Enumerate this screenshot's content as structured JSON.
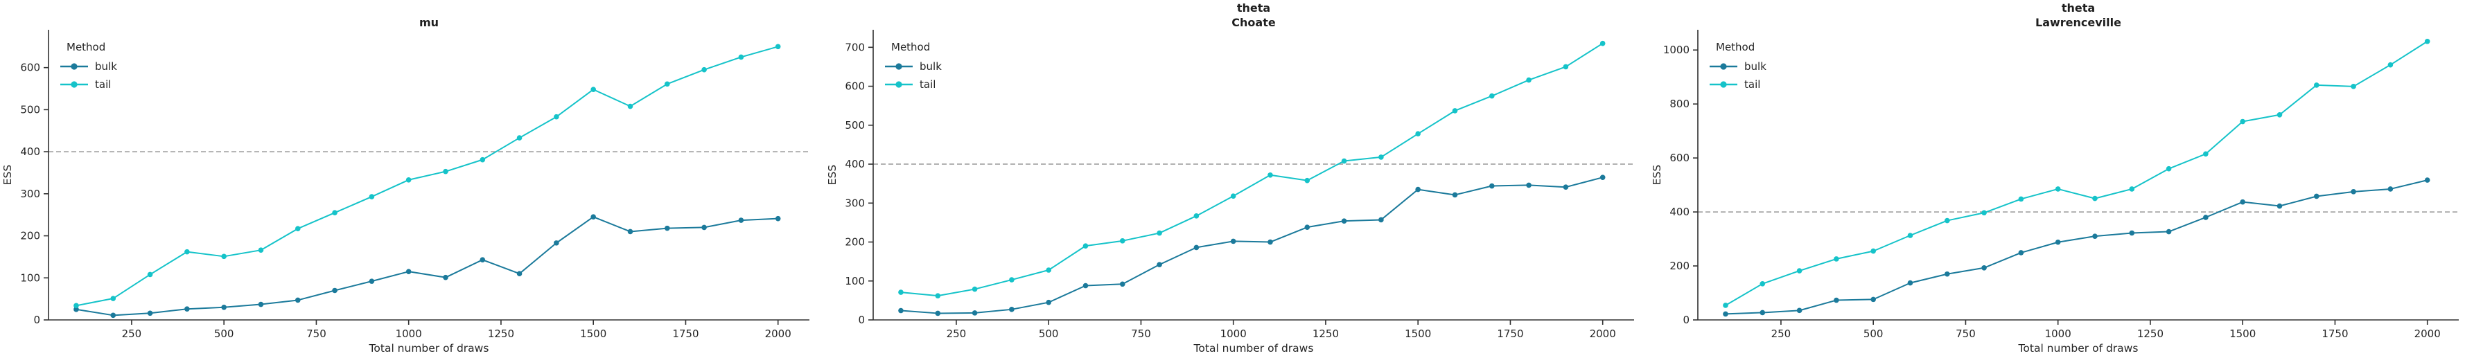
{
  "figure": {
    "xlabel": "Total number of draws",
    "ylabel": "ESS",
    "legend_title": "Method",
    "reference_line_y": 400,
    "colors": {
      "bulk": "#1b7a9b",
      "tail": "#15c3c9",
      "reference_line": "#a6a6a6",
      "axis": "#303030",
      "tick_label": "#262626",
      "title": "#1f1f1f",
      "background": "#ffffff"
    },
    "xticks": [
      250,
      500,
      750,
      1000,
      1250,
      1500,
      1750,
      2000
    ],
    "xlim": [
      25,
      2085
    ]
  },
  "chart_data": [
    {
      "type": "line",
      "title": "mu",
      "title_lines": [
        "mu"
      ],
      "xlabel": "Total number of draws",
      "ylabel": "ESS",
      "legend_position": "upper-left",
      "grid": false,
      "reference_line_y": 400,
      "x": [
        100,
        200,
        300,
        400,
        500,
        600,
        700,
        800,
        900,
        1000,
        1100,
        1200,
        1300,
        1400,
        1500,
        1600,
        1700,
        1800,
        1900,
        2000
      ],
      "series": [
        {
          "name": "bulk",
          "values": [
            25,
            11,
            16,
            26,
            30,
            37,
            47,
            70,
            92,
            115,
            101,
            143,
            110,
            183,
            245,
            210,
            218,
            220,
            237,
            241
          ]
        },
        {
          "name": "tail",
          "values": [
            34,
            51,
            108,
            162,
            151,
            166,
            217,
            255,
            293,
            333,
            353,
            381,
            433,
            483,
            548,
            508,
            561,
            595,
            625,
            650
          ]
        }
      ],
      "yticks": [
        0,
        100,
        200,
        300,
        400,
        500,
        600
      ],
      "ylim": [
        0,
        690
      ]
    },
    {
      "type": "line",
      "title": "theta Choate",
      "title_lines": [
        "theta",
        "Choate"
      ],
      "xlabel": "Total number of draws",
      "ylabel": "ESS",
      "legend_position": "upper-left",
      "grid": false,
      "reference_line_y": 400,
      "x": [
        100,
        200,
        300,
        400,
        500,
        600,
        700,
        800,
        900,
        1000,
        1100,
        1200,
        1300,
        1400,
        1500,
        1600,
        1700,
        1800,
        1900,
        2000
      ],
      "series": [
        {
          "name": "bulk",
          "values": [
            24,
            17,
            18,
            27,
            45,
            88,
            92,
            142,
            186,
            202,
            200,
            238,
            254,
            257,
            335,
            321,
            344,
            346,
            341,
            366
          ]
        },
        {
          "name": "tail",
          "values": [
            71,
            62,
            79,
            103,
            128,
            190,
            203,
            223,
            267,
            318,
            372,
            358,
            408,
            418,
            478,
            537,
            575,
            616,
            650,
            710
          ]
        }
      ],
      "yticks": [
        0,
        100,
        200,
        300,
        400,
        500,
        600,
        700
      ],
      "ylim": [
        0,
        745
      ]
    },
    {
      "type": "line",
      "title": "theta Lawrenceville",
      "title_lines": [
        "theta",
        "Lawrenceville"
      ],
      "xlabel": "Total number of draws",
      "ylabel": "ESS",
      "legend_position": "upper-left",
      "grid": false,
      "reference_line_y": 400,
      "x": [
        100,
        200,
        300,
        400,
        500,
        600,
        700,
        800,
        900,
        1000,
        1100,
        1200,
        1300,
        1400,
        1500,
        1600,
        1700,
        1800,
        1900,
        2000
      ],
      "series": [
        {
          "name": "bulk",
          "values": [
            22,
            27,
            35,
            73,
            76,
            137,
            170,
            193,
            249,
            288,
            310,
            322,
            327,
            380,
            437,
            422,
            458,
            475,
            485,
            518
          ]
        },
        {
          "name": "tail",
          "values": [
            54,
            134,
            182,
            226,
            255,
            313,
            368,
            397,
            448,
            485,
            450,
            485,
            560,
            615,
            735,
            760,
            870,
            865,
            945,
            1032
          ]
        }
      ],
      "yticks": [
        0,
        200,
        400,
        600,
        800,
        1000
      ],
      "ylim": [
        0,
        1075
      ]
    }
  ]
}
